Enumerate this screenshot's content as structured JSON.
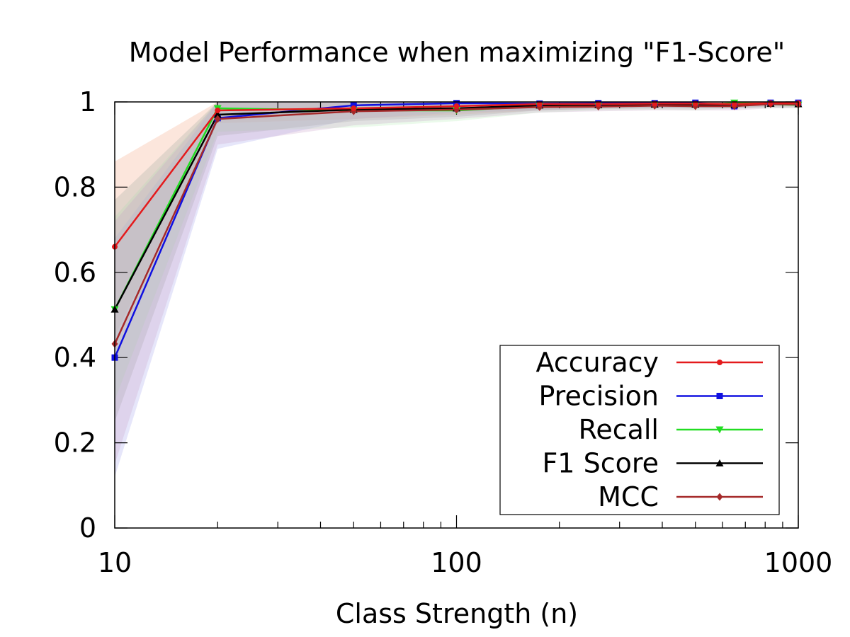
{
  "chart_data": {
    "type": "line",
    "title": "Model Performance when maximizing \"F1-Score\"",
    "xlabel": "Class Strength (n)",
    "ylabel": "",
    "xscale": "log",
    "xlim": [
      10,
      1000
    ],
    "ylim": [
      0,
      1
    ],
    "xticks": [
      10,
      100,
      1000
    ],
    "xtick_labels": [
      "10",
      "100",
      "1000"
    ],
    "yticks": [
      0,
      0.2,
      0.4,
      0.6,
      0.8,
      1
    ],
    "ytick_labels": [
      "0",
      "0.2",
      "0.4",
      "0.6",
      "0.8",
      "1"
    ],
    "grid": false,
    "legend_position": "bottom-right",
    "x": [
      10,
      20,
      50,
      100,
      175,
      260,
      380,
      500,
      650,
      830,
      1000
    ],
    "series": [
      {
        "name": "Accuracy",
        "color": "#e41a1c",
        "marker": "circle",
        "values": [
          0.66,
          0.98,
          0.985,
          0.99,
          0.995,
          0.995,
          0.996,
          0.996,
          0.995,
          0.997,
          0.997
        ],
        "band_low": [
          0.45,
          0.95,
          0.96,
          0.97,
          0.98,
          0.985,
          0.985,
          0.985,
          0.985,
          0.99,
          0.99
        ],
        "band_high": [
          0.86,
          1.0,
          1.0,
          1.0,
          1.0,
          1.0,
          1.0,
          1.0,
          1.0,
          1.0,
          1.0
        ],
        "band_color": "#f4a582"
      },
      {
        "name": "Precision",
        "color": "#1010e0",
        "marker": "square",
        "values": [
          0.4,
          0.962,
          0.992,
          0.997,
          0.996,
          0.997,
          0.997,
          0.998,
          0.99,
          0.998,
          0.998
        ],
        "band_low": [
          0.12,
          0.89,
          0.96,
          0.975,
          0.98,
          0.985,
          0.985,
          0.985,
          0.985,
          0.99,
          0.99
        ],
        "band_high": [
          0.68,
          1.0,
          1.0,
          1.0,
          1.0,
          1.0,
          1.0,
          1.0,
          1.0,
          1.0,
          1.0
        ],
        "band_color": "#a6a6ee"
      },
      {
        "name": "Recall",
        "color": "#22dd22",
        "marker": "triangle-down",
        "values": [
          0.513,
          0.985,
          0.98,
          0.98,
          0.99,
          0.99,
          0.992,
          0.99,
          0.998,
          0.995,
          0.993
        ],
        "band_low": [
          0.3,
          0.93,
          0.94,
          0.955,
          0.975,
          0.98,
          0.982,
          0.98,
          0.985,
          0.985,
          0.985
        ],
        "band_high": [
          0.73,
          1.0,
          1.0,
          1.0,
          1.0,
          1.0,
          1.0,
          1.0,
          1.0,
          1.0,
          1.0
        ],
        "band_color": "#b8ecb8"
      },
      {
        "name": "F1 Score",
        "color": "#000000",
        "marker": "triangle-up",
        "values": [
          0.513,
          0.97,
          0.982,
          0.985,
          0.992,
          0.993,
          0.994,
          0.994,
          0.993,
          0.996,
          0.995
        ],
        "band_low": [
          0.25,
          0.92,
          0.955,
          0.965,
          0.98,
          0.983,
          0.985,
          0.985,
          0.985,
          0.988,
          0.988
        ],
        "band_high": [
          0.77,
          1.0,
          1.0,
          1.0,
          1.0,
          1.0,
          1.0,
          1.0,
          1.0,
          1.0,
          1.0
        ],
        "band_color": "#9fa8a0"
      },
      {
        "name": "MCC",
        "color": "#a52a2a",
        "marker": "diamond",
        "values": [
          0.432,
          0.96,
          0.978,
          0.982,
          0.988,
          0.989,
          0.991,
          0.99,
          0.99,
          0.995,
          0.994
        ],
        "band_low": [
          0.15,
          0.9,
          0.945,
          0.96,
          0.975,
          0.978,
          0.98,
          0.98,
          0.98,
          0.985,
          0.985
        ],
        "band_high": [
          0.72,
          1.0,
          1.0,
          1.0,
          1.0,
          1.0,
          1.0,
          1.0,
          1.0,
          1.0,
          1.0
        ],
        "band_color": "#c9a0c9"
      }
    ]
  }
}
